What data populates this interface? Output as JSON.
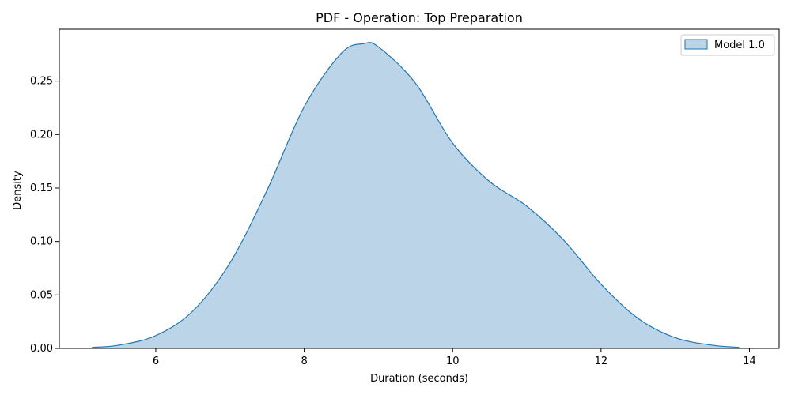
{
  "chart_data": {
    "type": "area",
    "title": "PDF - Operation: Top Preparation",
    "xlabel": "Duration (seconds)",
    "ylabel": "Density",
    "xlim": [
      4.7,
      14.4
    ],
    "ylim": [
      0.0,
      0.2985
    ],
    "x_ticks": [
      6,
      8,
      10,
      12,
      14
    ],
    "x_tick_labels": [
      "6",
      "8",
      "10",
      "12",
      "14"
    ],
    "y_ticks": [
      0.0,
      0.05,
      0.1,
      0.15,
      0.2,
      0.25
    ],
    "y_tick_labels": [
      "0.00",
      "0.05",
      "0.10",
      "0.15",
      "0.20",
      "0.25"
    ],
    "grid": false,
    "legend_position": "top-right",
    "colors": {
      "fill": "#a8c8e1",
      "line": "#1f77b4"
    },
    "series": [
      {
        "name": "Model 1.0",
        "x": [
          5.14,
          5.5,
          6.0,
          6.5,
          7.0,
          7.5,
          8.0,
          8.5,
          8.8,
          9.0,
          9.5,
          10.0,
          10.5,
          11.0,
          11.5,
          12.0,
          12.5,
          13.0,
          13.5,
          13.86
        ],
        "y": [
          0.001,
          0.003,
          0.012,
          0.035,
          0.08,
          0.148,
          0.226,
          0.276,
          0.285,
          0.282,
          0.248,
          0.192,
          0.156,
          0.133,
          0.101,
          0.06,
          0.028,
          0.01,
          0.003,
          0.001
        ]
      }
    ]
  }
}
